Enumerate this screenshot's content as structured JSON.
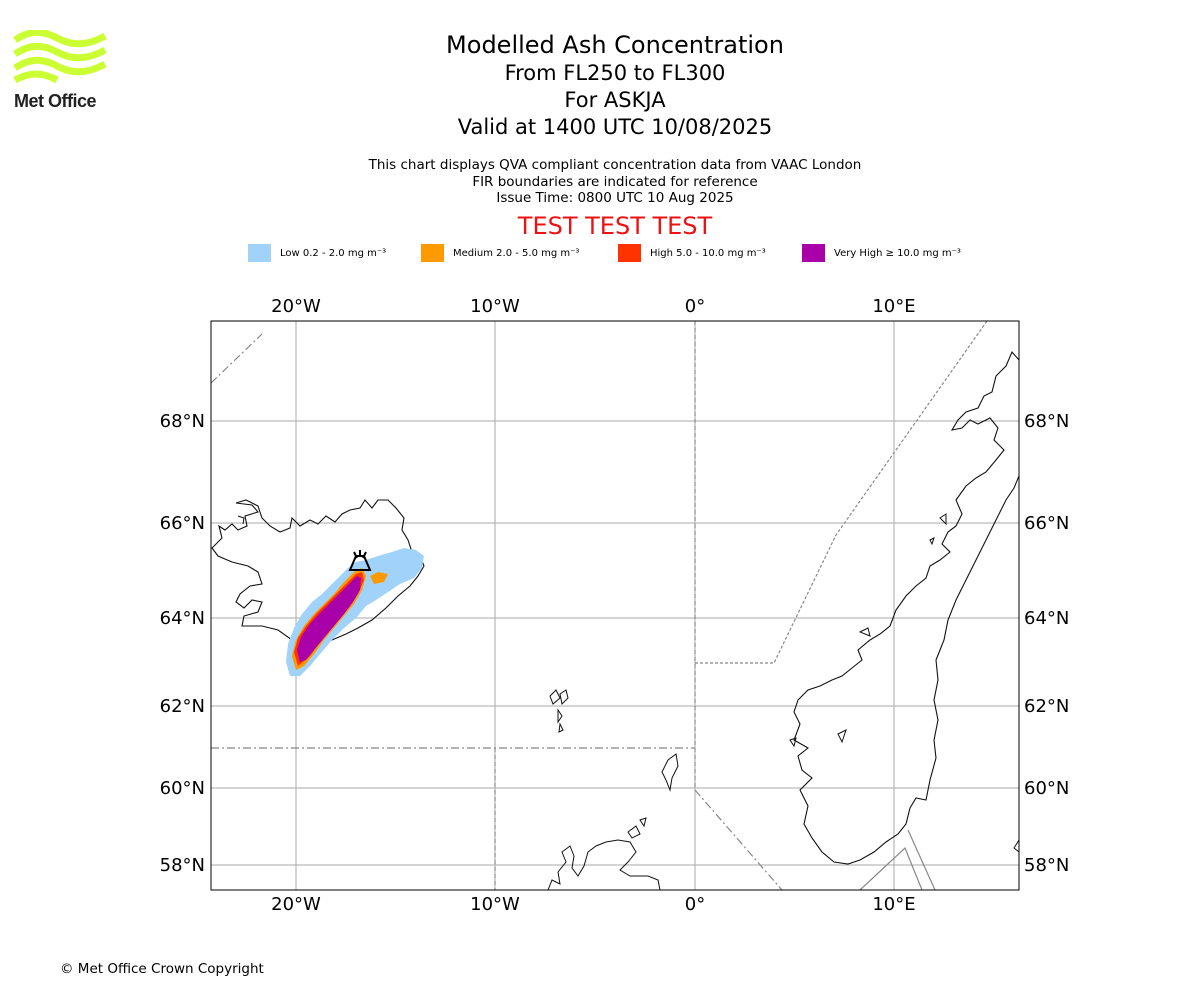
{
  "logo": {
    "text": "Met Office",
    "color": "#ccff33"
  },
  "title": {
    "line1": "Modelled Ash Concentration",
    "line2": "From FL250 to FL300",
    "line3": "For ASKJA",
    "line4": "Valid at 1400 UTC 10/08/2025"
  },
  "description": {
    "line1": "This chart displays QVA compliant concentration data from VAAC London",
    "line2": "FIR boundaries are indicated for reference",
    "line3": "Issue Time: 0800 UTC 10 Aug 2025"
  },
  "test_banner": "TEST TEST TEST",
  "legend": [
    {
      "label": "Low 0.2 - 2.0 mg m⁻³",
      "color": "#a0d2fa"
    },
    {
      "label": "Medium 2.0 - 5.0 mg m⁻³",
      "color": "#ff9900"
    },
    {
      "label": "High 5.0 - 10.0 mg m⁻³",
      "color": "#ff3300"
    },
    {
      "label": "Very High  ≥  10.0 mg m⁻³",
      "color": "#aa00aa"
    }
  ],
  "map": {
    "lon_ticks": [
      "20°W",
      "10°W",
      "0°",
      "10°E"
    ],
    "lat_ticks": [
      "68°N",
      "66°N",
      "64°N",
      "62°N",
      "60°N",
      "58°N"
    ],
    "gridline_color": "#aaaaaa",
    "volcano_symbol": "volcano-icon"
  },
  "copyright": "© Met Office Crown Copyright"
}
